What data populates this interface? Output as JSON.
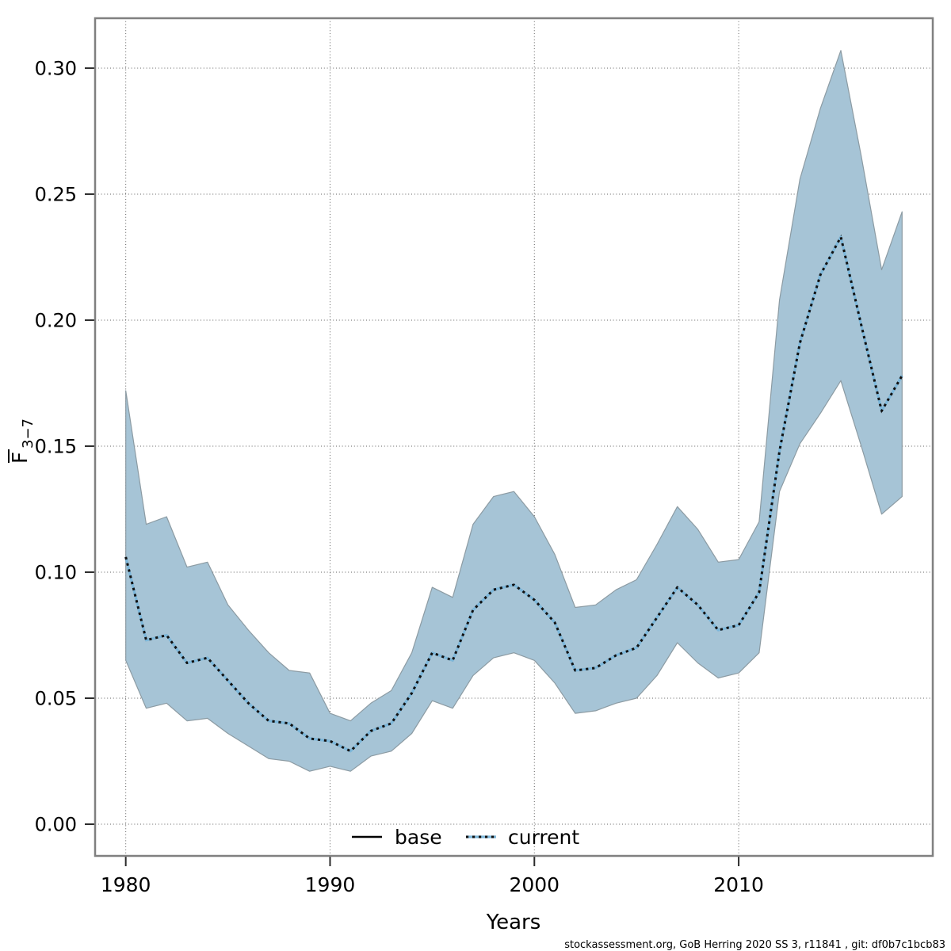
{
  "footer": {
    "text": "stockassessment.org, GoB Herring 2020 SS 3, r11841 , git: df0b7c1bcb83"
  },
  "colors": {
    "band": "#a6c4d6",
    "band_edge": "#8c9ba3",
    "current_line": "#7db7da",
    "dots": "#111111",
    "base_line": "#000000",
    "grid": "#606060",
    "frame": "#808080",
    "tick": "#2b2b2b",
    "text": "#000000",
    "background": "#ffffff"
  },
  "chart_data": {
    "type": "line",
    "title": "",
    "xlabel": "Years",
    "ylabel": "F̄3−7",
    "ylabel_parts": {
      "letter": "F",
      "sub": "3−7",
      "overbar": true
    },
    "grid": true,
    "legend_position": "bottom-center",
    "xlim": [
      1978.5,
      2019.5
    ],
    "ylim": [
      -0.01258,
      0.3198
    ],
    "xticks": [
      1980,
      1990,
      2000,
      2010
    ],
    "xtick_labels": [
      "1980",
      "1990",
      "2000",
      "2010"
    ],
    "yticks": [
      0.0,
      0.05,
      0.1,
      0.15,
      0.2,
      0.25,
      0.3
    ],
    "ytick_labels": [
      "0.00",
      "0.05",
      "0.10",
      "0.15",
      "0.20",
      "0.25",
      "0.30"
    ],
    "x": [
      1980,
      1981,
      1982,
      1983,
      1984,
      1985,
      1986,
      1987,
      1988,
      1989,
      1990,
      1991,
      1992,
      1993,
      1994,
      1995,
      1996,
      1997,
      1998,
      1999,
      2000,
      2001,
      2002,
      2003,
      2004,
      2005,
      2006,
      2007,
      2008,
      2009,
      2010,
      2011,
      2012,
      2013,
      2014,
      2015,
      2016,
      2017,
      2018
    ],
    "series": [
      {
        "name": "base",
        "style": "solid-black",
        "values": [
          0.106,
          0.073,
          0.075,
          0.064,
          0.066,
          0.057,
          0.048,
          0.041,
          0.04,
          0.034,
          0.033,
          0.029,
          0.037,
          0.04,
          0.052,
          0.068,
          0.065,
          0.085,
          0.093,
          0.095,
          0.089,
          0.08,
          0.061,
          0.062,
          0.067,
          0.07,
          0.082,
          0.094,
          0.087,
          0.077,
          0.079,
          0.092,
          0.148,
          0.191,
          0.218,
          0.233,
          0.198,
          0.164,
          0.178
        ]
      },
      {
        "name": "current",
        "style": "dotted-blue",
        "values": [
          0.106,
          0.073,
          0.075,
          0.064,
          0.066,
          0.057,
          0.048,
          0.041,
          0.04,
          0.034,
          0.033,
          0.029,
          0.037,
          0.04,
          0.052,
          0.068,
          0.065,
          0.085,
          0.093,
          0.095,
          0.089,
          0.08,
          0.061,
          0.062,
          0.067,
          0.07,
          0.082,
          0.094,
          0.087,
          0.077,
          0.079,
          0.092,
          0.148,
          0.191,
          0.218,
          0.233,
          0.198,
          0.164,
          0.178
        ]
      }
    ],
    "band": {
      "upper": [
        0.172,
        0.119,
        0.122,
        0.102,
        0.104,
        0.087,
        0.077,
        0.068,
        0.061,
        0.06,
        0.044,
        0.041,
        0.048,
        0.053,
        0.068,
        0.094,
        0.09,
        0.119,
        0.13,
        0.132,
        0.122,
        0.107,
        0.086,
        0.087,
        0.093,
        0.097,
        0.111,
        0.126,
        0.117,
        0.104,
        0.105,
        0.12,
        0.208,
        0.256,
        0.284,
        0.307,
        0.265,
        0.22,
        0.243
      ],
      "lower": [
        0.065,
        0.046,
        0.048,
        0.041,
        0.042,
        0.036,
        0.031,
        0.026,
        0.025,
        0.021,
        0.023,
        0.021,
        0.027,
        0.029,
        0.036,
        0.049,
        0.046,
        0.059,
        0.066,
        0.068,
        0.065,
        0.056,
        0.044,
        0.045,
        0.048,
        0.05,
        0.059,
        0.072,
        0.064,
        0.058,
        0.06,
        0.068,
        0.132,
        0.151,
        0.163,
        0.176,
        0.15,
        0.123,
        0.13
      ]
    }
  }
}
